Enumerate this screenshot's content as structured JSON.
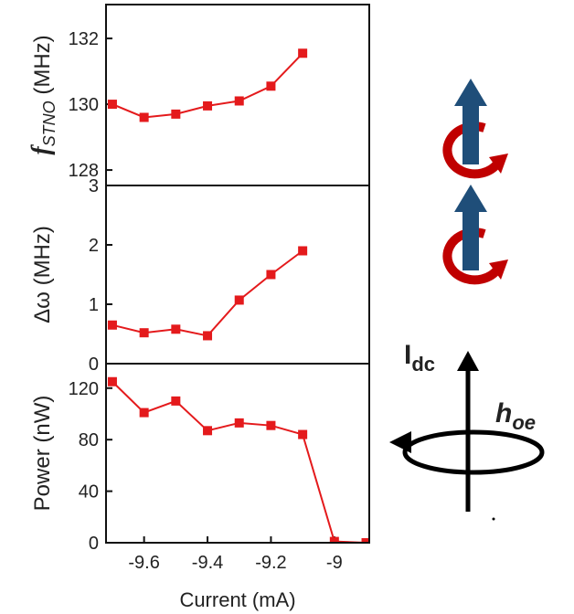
{
  "chart_data": [
    {
      "type": "line",
      "ylabel": {
        "symbol": "f",
        "sub": "STNO",
        "unit": "(MHz)"
      },
      "x": [
        -9.7,
        -9.6,
        -9.5,
        -9.4,
        -9.3,
        -9.2,
        -9.1
      ],
      "series": [
        {
          "color": "#e41a1c",
          "values": [
            130.0,
            129.6,
            129.7,
            129.95,
            130.1,
            130.55,
            131.55
          ]
        }
      ],
      "xlim": [
        -9.72,
        -8.89
      ],
      "ylim": [
        127.53,
        133.03
      ],
      "yticks": [
        128,
        130,
        132
      ]
    },
    {
      "type": "line",
      "ylabel": {
        "symbol": "Δω",
        "sub": "",
        "unit": "(MHz)"
      },
      "x": [
        -9.7,
        -9.6,
        -9.5,
        -9.4,
        -9.3,
        -9.2,
        -9.1
      ],
      "series": [
        {
          "color": "#e41a1c",
          "values": [
            0.65,
            0.52,
            0.58,
            0.47,
            1.07,
            1.5,
            1.9
          ]
        }
      ],
      "xlim": [
        -9.72,
        -8.89
      ],
      "ylim": [
        0,
        3
      ],
      "yticks": [
        0,
        1,
        2,
        3
      ]
    },
    {
      "type": "line",
      "ylabel": {
        "symbol": "Power",
        "sub": "",
        "unit": "(nW)"
      },
      "xlabel": "Current (mA)",
      "x": [
        -9.7,
        -9.6,
        -9.5,
        -9.4,
        -9.3,
        -9.2,
        -9.1,
        -9.0,
        -8.9
      ],
      "series": [
        {
          "color": "#e41a1c",
          "values": [
            125,
            101,
            110,
            87,
            93,
            91,
            84,
            1,
            0
          ]
        }
      ],
      "xlim": [
        -9.72,
        -8.89
      ],
      "ylim": [
        0,
        139
      ],
      "yticks": [
        0,
        40,
        80,
        120
      ],
      "xticks": [
        -9.6,
        -9.4,
        -9.2,
        -9.0
      ]
    }
  ],
  "diagram": {
    "current": "I",
    "current_sub": "dc",
    "field": "h",
    "field_sub": "oe"
  }
}
